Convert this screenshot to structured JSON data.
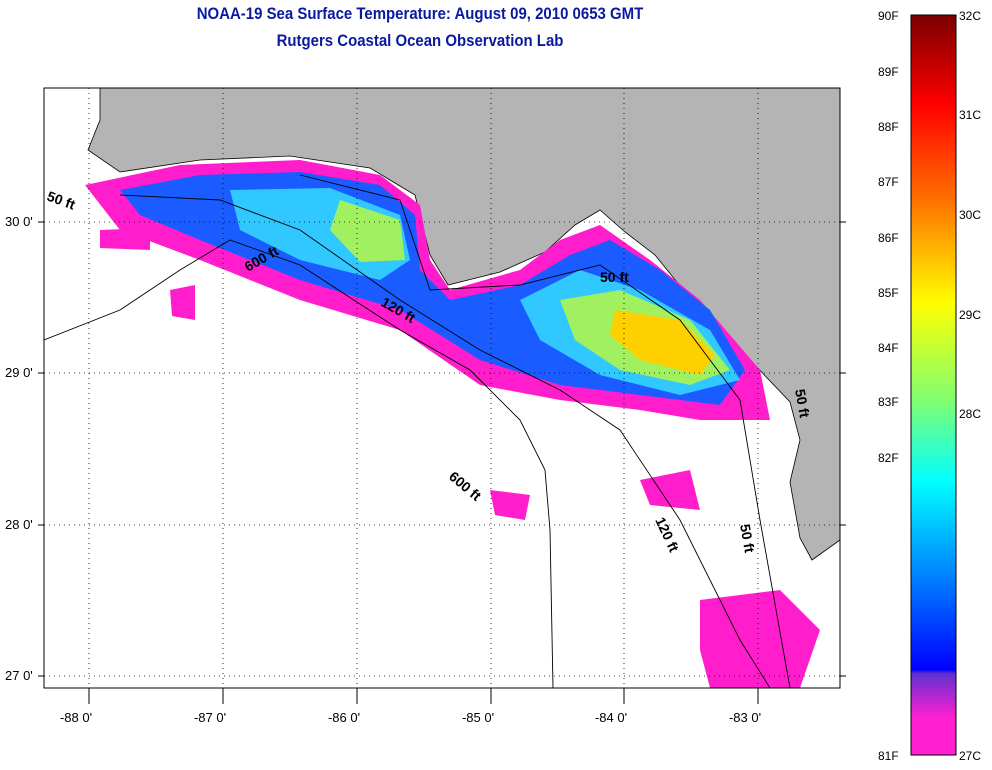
{
  "title": "NOAA-19 Sea Surface Temperature:  August 09, 2010 0653 GMT",
  "subtitle": "Rutgers Coastal Ocean Observation Lab",
  "map": {
    "lat_ticks": [
      "30 0'",
      "29 0'",
      "28 0'",
      "27 0'"
    ],
    "lon_ticks": [
      "-88 0'",
      "-87 0'",
      "-86 0'",
      "-85 0'",
      "-84 0'",
      "-83 0'"
    ],
    "contour_labels": [
      "50 ft",
      "600 ft",
      "120 ft",
      "50 ft",
      "600 ft",
      "120 ft",
      "50 ft",
      "50 ft"
    ],
    "colors": {
      "land": "#b4b4b4",
      "ocean": "#ffffff",
      "cold": "#ff1dcc",
      "mid": "#1a5cff",
      "warm": "#ffff00"
    }
  },
  "colorbar": {
    "fahrenheit": [
      "90F",
      "89F",
      "88F",
      "87F",
      "86F",
      "85F",
      "84F",
      "83F",
      "82F",
      "81F"
    ],
    "celsius": [
      "32C",
      "31C",
      "30C",
      "29C",
      "28C",
      "27C"
    ]
  }
}
